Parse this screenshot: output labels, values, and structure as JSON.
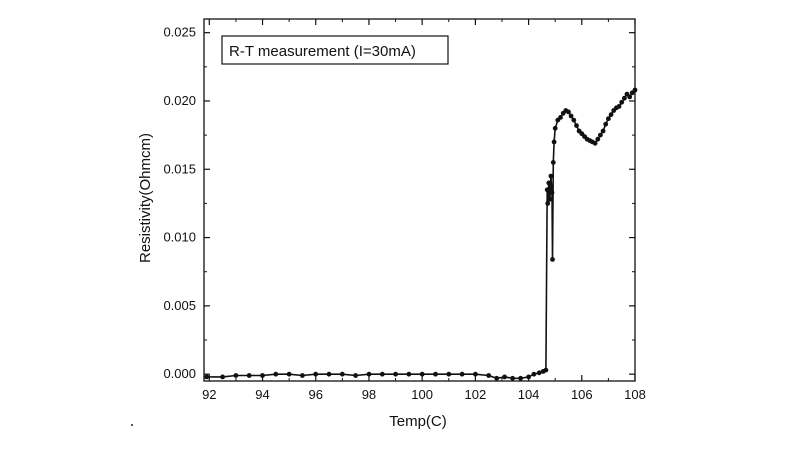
{
  "chart_data": {
    "type": "scatter",
    "title": "",
    "legend": "R-T measurement (I=30mA)",
    "xlabel": "Temp(C)",
    "ylabel": "Resistivity(Ohmcm)",
    "xlim": [
      91.8,
      108
    ],
    "ylim": [
      -0.0005,
      0.026
    ],
    "xticks": [
      92,
      94,
      96,
      98,
      100,
      102,
      104,
      106,
      108
    ],
    "yticks": [
      0.0,
      0.005,
      0.01,
      0.015,
      0.02,
      0.025
    ],
    "ytick_labels": [
      "0.000",
      "0.005",
      "0.010",
      "0.015",
      "0.020",
      "0.025"
    ],
    "grid": false,
    "legend_position": "top-left",
    "series": [
      {
        "color": "#111111",
        "marker": "circle-line",
        "x": [
          91.9,
          92.5,
          93.0,
          93.5,
          94.0,
          94.5,
          95.0,
          95.5,
          96.0,
          96.5,
          97.0,
          97.5,
          98.0,
          98.5,
          99.0,
          99.5,
          100.0,
          100.5,
          101.0,
          101.5,
          102.0,
          102.5,
          102.8,
          103.1,
          103.4,
          103.7,
          104.0,
          104.2,
          104.4,
          104.55,
          104.65,
          104.7,
          104.72,
          104.76,
          104.8,
          104.84,
          104.88,
          104.9,
          104.93,
          104.96,
          105.0,
          105.1,
          105.2,
          105.3,
          105.4,
          105.5,
          105.6,
          105.7,
          105.8,
          105.9,
          106.0,
          106.1,
          106.2,
          106.3,
          106.4,
          106.5,
          106.6,
          106.7,
          106.8,
          106.9,
          107.0,
          107.1,
          107.2,
          107.3,
          107.4,
          107.5,
          107.6,
          107.7,
          107.8,
          107.9,
          108.0
        ],
        "y": [
          -0.0002,
          -0.0002,
          -0.0001,
          -0.0001,
          -0.0001,
          0.0,
          0.0,
          -0.0001,
          0.0,
          0.0,
          0.0,
          -0.0001,
          0.0,
          0.0,
          0.0,
          0.0,
          0.0,
          0.0,
          0.0,
          0.0,
          0.0,
          -0.0001,
          -0.0003,
          -0.0002,
          -0.0003,
          -0.0003,
          -0.0002,
          0.0,
          0.0001,
          0.0002,
          0.0003,
          0.0135,
          0.0125,
          0.014,
          0.0128,
          0.0145,
          0.0133,
          0.0084,
          0.0155,
          0.017,
          0.018,
          0.0186,
          0.0188,
          0.0191,
          0.0193,
          0.0192,
          0.0189,
          0.0186,
          0.0182,
          0.0178,
          0.0176,
          0.0174,
          0.0172,
          0.0171,
          0.017,
          0.0169,
          0.0172,
          0.0175,
          0.0178,
          0.0183,
          0.0187,
          0.019,
          0.0193,
          0.0195,
          0.0196,
          0.0199,
          0.0202,
          0.0205,
          0.0203,
          0.0206,
          0.0208
        ]
      }
    ]
  },
  "footnote": "."
}
